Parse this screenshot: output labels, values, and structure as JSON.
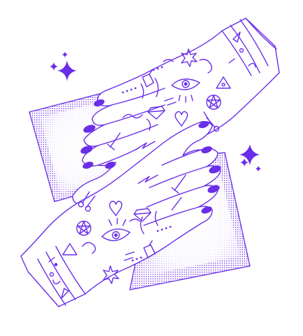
{
  "illustration": {
    "subject": "two-tattooed-hands-with-tarot-cards",
    "colors": {
      "ink": "#6a2ee8",
      "background": "#ffffff"
    }
  }
}
